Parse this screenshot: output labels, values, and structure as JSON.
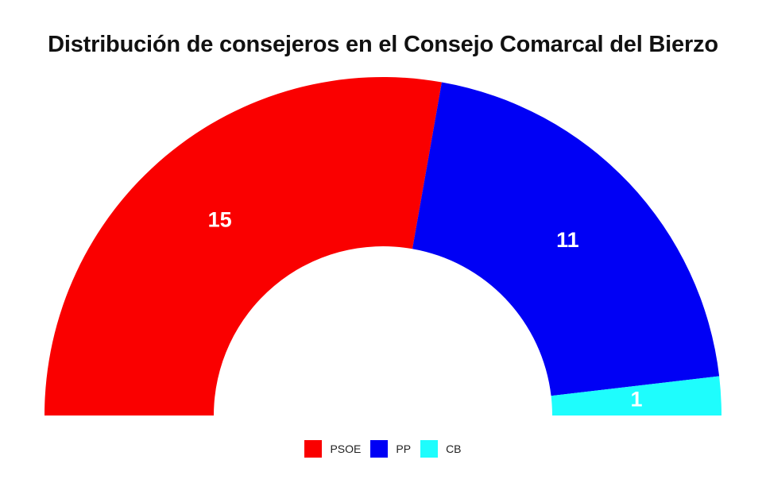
{
  "chart_data": {
    "type": "pie",
    "subtype": "semicircle-parliament",
    "title": "Distribución de consejeros en el Consejo Comarcal del Bierzo",
    "categories": [
      "PSOE",
      "PP",
      "CB"
    ],
    "values": [
      15,
      11,
      1
    ],
    "colors": [
      "#fa0000",
      "#0000f5",
      "#1efdfd"
    ],
    "legend_position": "bottom",
    "data_labels": [
      "15",
      "11",
      "1"
    ]
  }
}
